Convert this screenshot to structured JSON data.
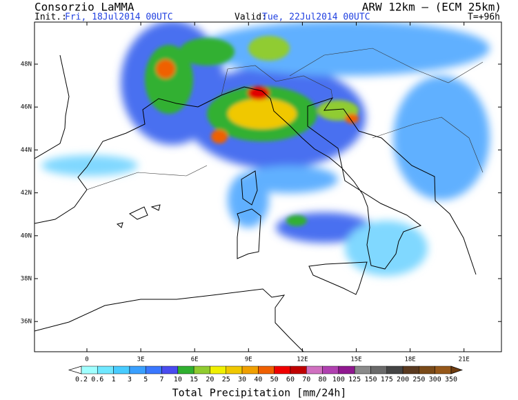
{
  "header": {
    "left": "Consorzio LaMMA",
    "right": "ARW 12km – (ECM 25km)"
  },
  "subheader": {
    "init_label": "Init.:",
    "init": "Fri, 18Jul2014 00UTC",
    "valid_label": "Valid:",
    "valid": "Tue, 22Jul2014 00UTC",
    "lead": "T=+96h"
  },
  "map": {
    "lat_labels": [
      "48N",
      "46N",
      "44N",
      "42N",
      "40N",
      "38N",
      "36N"
    ],
    "lon_labels": [
      "0",
      "3E",
      "6E",
      "9E",
      "12E",
      "15E",
      "18E",
      "21E"
    ]
  },
  "colorbar": {
    "labels": [
      "0.2",
      "0.6",
      "1",
      "3",
      "5",
      "7",
      "10",
      "15",
      "20",
      "25",
      "30",
      "40",
      "50",
      "60",
      "70",
      "80",
      "100",
      "125",
      "150",
      "175",
      "200",
      "250",
      "300",
      "350"
    ],
    "colors": [
      "#a0ffff",
      "#70e8ff",
      "#48ccff",
      "#3aa0ff",
      "#3a78ff",
      "#4a4cf0",
      "#30b030",
      "#90cc30",
      "#f0f000",
      "#f0c800",
      "#f0a000",
      "#f06000",
      "#f00000",
      "#c00000",
      "#d070c0",
      "#b040b0",
      "#901890",
      "#8a8a8a",
      "#6a6a6a",
      "#444444",
      "#5a3a20",
      "#7a4a18",
      "#96581a"
    ],
    "under_color": "#ffffff",
    "over_color": "#6e3c10",
    "title": "Total Precipitation [mm/24h]"
  }
}
